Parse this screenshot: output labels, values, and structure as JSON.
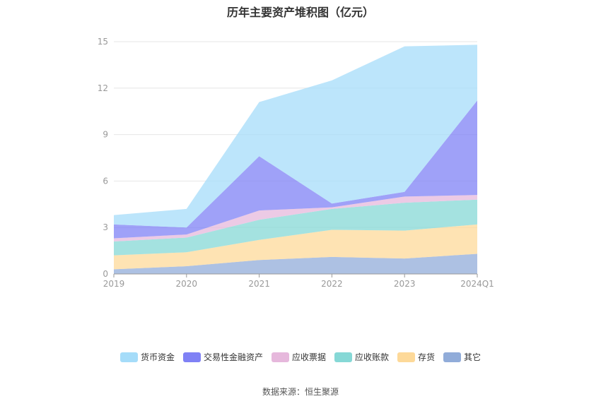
{
  "chart_data": {
    "type": "area",
    "title": "历年主要资产堆积图（亿元）",
    "categories": [
      "2019",
      "2020",
      "2021",
      "2022",
      "2023",
      "2024Q1"
    ],
    "ylim": [
      0,
      15
    ],
    "yticks": [
      "0",
      "3",
      "6",
      "9",
      "12",
      "15"
    ],
    "grid": true,
    "legend_position": "bottom",
    "stacked": true,
    "series": [
      {
        "name": "其它",
        "color": "#91acd9",
        "values": [
          0.3,
          0.5,
          0.9,
          1.1,
          1.0,
          1.3
        ]
      },
      {
        "name": "存货",
        "color": "#fdd999",
        "values": [
          0.9,
          0.9,
          1.3,
          1.75,
          1.8,
          1.9
        ]
      },
      {
        "name": "应收账款",
        "color": "#86d8d6",
        "values": [
          0.9,
          0.95,
          1.3,
          1.35,
          1.8,
          1.6
        ]
      },
      {
        "name": "应收票据",
        "color": "#e6b8dc",
        "values": [
          0.2,
          0.2,
          0.6,
          0.1,
          0.4,
          0.3
        ]
      },
      {
        "name": "交易性金融资产",
        "color": "#7f81f5",
        "values": [
          0.9,
          0.45,
          3.5,
          0.25,
          0.3,
          6.1
        ]
      },
      {
        "name": "货币资金",
        "color": "#a5dcf9",
        "values": [
          0.6,
          1.2,
          3.5,
          7.95,
          9.4,
          3.6
        ]
      }
    ],
    "source": "数据来源：恒生聚源"
  },
  "legend_order": [
    "货币资金",
    "交易性金融资产",
    "应收票据",
    "应收账款",
    "存货",
    "其它"
  ]
}
